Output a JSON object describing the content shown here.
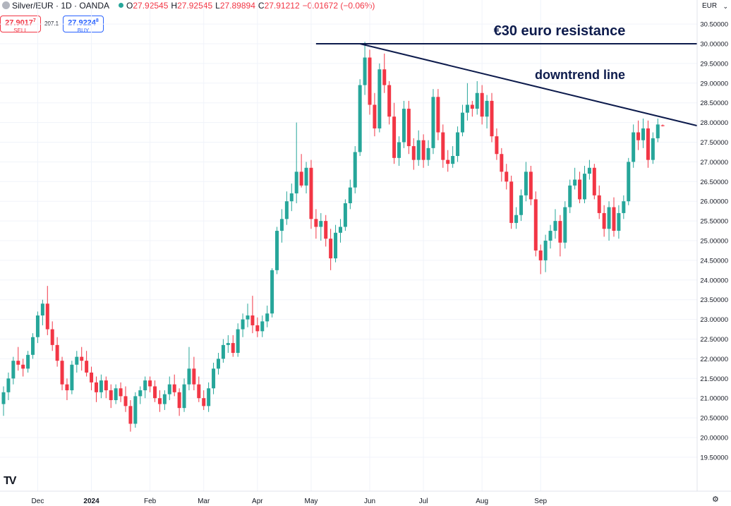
{
  "header": {
    "symbol": "Silver/EUR · 1D · OANDA",
    "o_label": "O",
    "o_value": "27.92545",
    "h_label": "H",
    "h_value": "27.92545",
    "l_label": "L",
    "l_value": "27.89894",
    "c_label": "C",
    "c_value": "27.91212",
    "change": "−0.01672 (−0.06%)"
  },
  "trade": {
    "sell_price": "27.9017",
    "sell_sup": "7",
    "sell_label": "SELL",
    "spread": "207.1",
    "buy_price": "27.9224",
    "buy_sup": "8",
    "buy_label": "BUY"
  },
  "currency": "EUR",
  "colors": {
    "up": "#26a69a",
    "down": "#f23645",
    "annotation": "#0d1b4c"
  },
  "chart_data": {
    "type": "candlestick",
    "title": "",
    "xlabel": "",
    "ylabel": "",
    "ylim": [
      19.4,
      30.5
    ],
    "y_ticks": [
      19.5,
      20.0,
      20.5,
      21.0,
      21.5,
      22.0,
      22.5,
      23.0,
      23.5,
      24.0,
      24.5,
      25.0,
      25.5,
      26.0,
      26.5,
      27.0,
      27.5,
      28.0,
      28.5,
      29.0,
      29.5,
      30.0,
      30.5
    ],
    "y_tick_labels": [
      "19.50000",
      "20.00000",
      "20.50000",
      "21.00000",
      "21.50000",
      "22.00000",
      "22.50000",
      "23.00000",
      "23.50000",
      "24.00000",
      "24.50000",
      "25.00000",
      "25.50000",
      "26.00000",
      "26.50000",
      "27.00000",
      "27.50000",
      "28.00000",
      "28.50000",
      "29.00000",
      "29.50000",
      "30.00000",
      "30.50000"
    ],
    "x_labels": [
      {
        "label": "Dec",
        "index": 7
      },
      {
        "label": "2024",
        "index": 18
      },
      {
        "label": "Feb",
        "index": 30
      },
      {
        "label": "Mar",
        "index": 41
      },
      {
        "label": "Apr",
        "index": 52
      },
      {
        "label": "May",
        "index": 63
      },
      {
        "label": "Jun",
        "index": 75
      },
      {
        "label": "Jul",
        "index": 86
      },
      {
        "label": "Aug",
        "index": 98
      },
      {
        "label": "Sep",
        "index": 110
      }
    ],
    "grid": true,
    "candles": [
      {
        "o": 20.85,
        "h": 21.3,
        "l": 20.55,
        "c": 21.15
      },
      {
        "o": 21.15,
        "h": 21.65,
        "l": 20.95,
        "c": 21.5
      },
      {
        "o": 21.5,
        "h": 22.05,
        "l": 21.35,
        "c": 21.95
      },
      {
        "o": 21.95,
        "h": 22.3,
        "l": 21.7,
        "c": 21.85
      },
      {
        "o": 21.85,
        "h": 22.0,
        "l": 21.55,
        "c": 21.75
      },
      {
        "o": 21.75,
        "h": 22.2,
        "l": 21.65,
        "c": 22.1
      },
      {
        "o": 22.1,
        "h": 22.65,
        "l": 22.0,
        "c": 22.55
      },
      {
        "o": 22.55,
        "h": 23.2,
        "l": 22.4,
        "c": 23.1
      },
      {
        "o": 23.1,
        "h": 23.5,
        "l": 22.85,
        "c": 23.4
      },
      {
        "o": 23.4,
        "h": 23.85,
        "l": 22.6,
        "c": 22.75
      },
      {
        "o": 22.75,
        "h": 22.95,
        "l": 22.2,
        "c": 22.35
      },
      {
        "o": 22.35,
        "h": 22.55,
        "l": 21.8,
        "c": 21.95
      },
      {
        "o": 21.95,
        "h": 22.05,
        "l": 21.2,
        "c": 21.35
      },
      {
        "o": 21.35,
        "h": 21.5,
        "l": 20.95,
        "c": 21.2
      },
      {
        "o": 21.2,
        "h": 21.95,
        "l": 21.1,
        "c": 21.85
      },
      {
        "o": 21.85,
        "h": 22.2,
        "l": 21.65,
        "c": 22.05
      },
      {
        "o": 22.05,
        "h": 22.3,
        "l": 21.7,
        "c": 21.95
      },
      {
        "o": 21.95,
        "h": 22.2,
        "l": 21.55,
        "c": 21.65
      },
      {
        "o": 21.65,
        "h": 21.8,
        "l": 21.2,
        "c": 21.4
      },
      {
        "o": 21.4,
        "h": 21.55,
        "l": 20.9,
        "c": 21.15
      },
      {
        "o": 21.15,
        "h": 21.6,
        "l": 21.0,
        "c": 21.45
      },
      {
        "o": 21.45,
        "h": 21.55,
        "l": 21.0,
        "c": 21.2
      },
      {
        "o": 21.2,
        "h": 21.35,
        "l": 20.75,
        "c": 20.95
      },
      {
        "o": 20.95,
        "h": 21.35,
        "l": 20.85,
        "c": 21.25
      },
      {
        "o": 21.25,
        "h": 21.4,
        "l": 20.9,
        "c": 21.05
      },
      {
        "o": 21.05,
        "h": 21.3,
        "l": 20.65,
        "c": 20.8
      },
      {
        "o": 20.8,
        "h": 20.95,
        "l": 20.15,
        "c": 20.35
      },
      {
        "o": 20.35,
        "h": 21.15,
        "l": 20.25,
        "c": 21.05
      },
      {
        "o": 21.05,
        "h": 21.3,
        "l": 20.85,
        "c": 21.2
      },
      {
        "o": 21.2,
        "h": 21.55,
        "l": 21.0,
        "c": 21.45
      },
      {
        "o": 21.45,
        "h": 21.55,
        "l": 21.15,
        "c": 21.3
      },
      {
        "o": 21.3,
        "h": 21.45,
        "l": 20.9,
        "c": 21.0
      },
      {
        "o": 21.0,
        "h": 21.2,
        "l": 20.65,
        "c": 20.85
      },
      {
        "o": 20.85,
        "h": 21.2,
        "l": 20.7,
        "c": 21.1
      },
      {
        "o": 21.1,
        "h": 21.55,
        "l": 20.95,
        "c": 21.35
      },
      {
        "o": 21.35,
        "h": 21.6,
        "l": 21.05,
        "c": 21.15
      },
      {
        "o": 21.15,
        "h": 21.25,
        "l": 20.55,
        "c": 20.75
      },
      {
        "o": 20.75,
        "h": 21.5,
        "l": 20.65,
        "c": 21.35
      },
      {
        "o": 21.35,
        "h": 22.3,
        "l": 21.2,
        "c": 21.75
      },
      {
        "o": 21.75,
        "h": 22.05,
        "l": 21.2,
        "c": 21.35
      },
      {
        "o": 21.35,
        "h": 21.55,
        "l": 20.9,
        "c": 21.0
      },
      {
        "o": 21.0,
        "h": 21.2,
        "l": 20.7,
        "c": 20.8
      },
      {
        "o": 20.8,
        "h": 21.4,
        "l": 20.65,
        "c": 21.25
      },
      {
        "o": 21.25,
        "h": 21.9,
        "l": 21.1,
        "c": 21.75
      },
      {
        "o": 21.75,
        "h": 22.15,
        "l": 21.6,
        "c": 22.0
      },
      {
        "o": 22.0,
        "h": 22.5,
        "l": 21.9,
        "c": 22.35
      },
      {
        "o": 22.35,
        "h": 22.6,
        "l": 22.15,
        "c": 22.4
      },
      {
        "o": 22.4,
        "h": 22.6,
        "l": 22.05,
        "c": 22.15
      },
      {
        "o": 22.15,
        "h": 22.9,
        "l": 22.05,
        "c": 22.75
      },
      {
        "o": 22.75,
        "h": 23.15,
        "l": 22.55,
        "c": 23.0
      },
      {
        "o": 23.0,
        "h": 23.4,
        "l": 22.8,
        "c": 23.1
      },
      {
        "o": 23.1,
        "h": 23.6,
        "l": 22.65,
        "c": 22.85
      },
      {
        "o": 22.85,
        "h": 23.05,
        "l": 22.55,
        "c": 22.7
      },
      {
        "o": 22.7,
        "h": 23.1,
        "l": 22.55,
        "c": 22.95
      },
      {
        "o": 22.95,
        "h": 23.35,
        "l": 22.8,
        "c": 23.15
      },
      {
        "o": 23.15,
        "h": 24.3,
        "l": 23.05,
        "c": 24.25
      },
      {
        "o": 24.25,
        "h": 25.35,
        "l": 24.15,
        "c": 25.25
      },
      {
        "o": 25.25,
        "h": 25.8,
        "l": 24.95,
        "c": 25.55
      },
      {
        "o": 25.55,
        "h": 26.25,
        "l": 25.4,
        "c": 26.0
      },
      {
        "o": 26.0,
        "h": 26.45,
        "l": 25.75,
        "c": 26.2
      },
      {
        "o": 26.2,
        "h": 28.0,
        "l": 25.95,
        "c": 26.75
      },
      {
        "o": 26.75,
        "h": 27.2,
        "l": 26.35,
        "c": 26.4
      },
      {
        "o": 26.4,
        "h": 27.0,
        "l": 26.2,
        "c": 26.85
      },
      {
        "o": 26.85,
        "h": 27.05,
        "l": 25.3,
        "c": 25.55
      },
      {
        "o": 25.55,
        "h": 25.8,
        "l": 25.05,
        "c": 25.35
      },
      {
        "o": 25.35,
        "h": 25.7,
        "l": 25.0,
        "c": 25.5
      },
      {
        "o": 25.5,
        "h": 25.65,
        "l": 24.85,
        "c": 25.05
      },
      {
        "o": 25.05,
        "h": 25.3,
        "l": 24.25,
        "c": 24.55
      },
      {
        "o": 24.55,
        "h": 25.4,
        "l": 24.45,
        "c": 25.2
      },
      {
        "o": 25.2,
        "h": 25.55,
        "l": 24.95,
        "c": 25.35
      },
      {
        "o": 25.35,
        "h": 26.05,
        "l": 25.25,
        "c": 25.95
      },
      {
        "o": 25.95,
        "h": 26.55,
        "l": 25.8,
        "c": 26.35
      },
      {
        "o": 26.35,
        "h": 27.4,
        "l": 26.2,
        "c": 27.25
      },
      {
        "o": 27.25,
        "h": 29.1,
        "l": 27.15,
        "c": 28.95
      },
      {
        "o": 28.95,
        "h": 30.05,
        "l": 28.7,
        "c": 29.65
      },
      {
        "o": 29.65,
        "h": 29.85,
        "l": 28.2,
        "c": 28.45
      },
      {
        "o": 28.45,
        "h": 28.75,
        "l": 27.65,
        "c": 27.85
      },
      {
        "o": 27.85,
        "h": 29.5,
        "l": 27.75,
        "c": 29.35
      },
      {
        "o": 29.35,
        "h": 29.75,
        "l": 28.75,
        "c": 28.95
      },
      {
        "o": 28.95,
        "h": 29.05,
        "l": 27.95,
        "c": 28.15
      },
      {
        "o": 28.15,
        "h": 28.5,
        "l": 26.95,
        "c": 27.1
      },
      {
        "o": 27.1,
        "h": 27.65,
        "l": 26.9,
        "c": 27.5
      },
      {
        "o": 27.5,
        "h": 28.55,
        "l": 27.35,
        "c": 28.35
      },
      {
        "o": 28.35,
        "h": 28.55,
        "l": 27.2,
        "c": 27.4
      },
      {
        "o": 27.4,
        "h": 27.6,
        "l": 26.8,
        "c": 27.05
      },
      {
        "o": 27.05,
        "h": 27.8,
        "l": 26.9,
        "c": 27.55
      },
      {
        "o": 27.55,
        "h": 27.7,
        "l": 26.85,
        "c": 27.05
      },
      {
        "o": 27.05,
        "h": 27.55,
        "l": 26.9,
        "c": 27.35
      },
      {
        "o": 27.35,
        "h": 28.85,
        "l": 27.2,
        "c": 28.65
      },
      {
        "o": 28.65,
        "h": 28.85,
        "l": 27.55,
        "c": 27.75
      },
      {
        "o": 27.75,
        "h": 27.95,
        "l": 26.85,
        "c": 27.05
      },
      {
        "o": 27.05,
        "h": 27.3,
        "l": 26.75,
        "c": 26.95
      },
      {
        "o": 26.95,
        "h": 27.4,
        "l": 26.85,
        "c": 27.15
      },
      {
        "o": 27.15,
        "h": 27.9,
        "l": 27.0,
        "c": 27.75
      },
      {
        "o": 27.75,
        "h": 28.45,
        "l": 27.65,
        "c": 28.25
      },
      {
        "o": 28.25,
        "h": 29.0,
        "l": 28.05,
        "c": 28.45
      },
      {
        "o": 28.45,
        "h": 28.55,
        "l": 28.15,
        "c": 28.35
      },
      {
        "o": 28.35,
        "h": 29.05,
        "l": 28.2,
        "c": 28.75
      },
      {
        "o": 28.75,
        "h": 28.95,
        "l": 27.95,
        "c": 28.15
      },
      {
        "o": 28.15,
        "h": 28.7,
        "l": 27.85,
        "c": 28.55
      },
      {
        "o": 28.55,
        "h": 28.75,
        "l": 27.5,
        "c": 27.65
      },
      {
        "o": 27.65,
        "h": 27.85,
        "l": 27.05,
        "c": 27.2
      },
      {
        "o": 27.2,
        "h": 27.35,
        "l": 26.5,
        "c": 26.75
      },
      {
        "o": 26.75,
        "h": 26.95,
        "l": 26.3,
        "c": 26.5
      },
      {
        "o": 26.5,
        "h": 26.65,
        "l": 25.3,
        "c": 25.45
      },
      {
        "o": 25.45,
        "h": 25.85,
        "l": 25.3,
        "c": 25.65
      },
      {
        "o": 25.65,
        "h": 26.3,
        "l": 25.5,
        "c": 26.15
      },
      {
        "o": 26.15,
        "h": 27.0,
        "l": 26.0,
        "c": 26.75
      },
      {
        "o": 26.75,
        "h": 26.9,
        "l": 25.9,
        "c": 26.05
      },
      {
        "o": 26.05,
        "h": 26.25,
        "l": 24.6,
        "c": 24.75
      },
      {
        "o": 24.75,
        "h": 24.9,
        "l": 24.15,
        "c": 24.5
      },
      {
        "o": 24.5,
        "h": 25.15,
        "l": 24.2,
        "c": 25.0
      },
      {
        "o": 25.0,
        "h": 25.4,
        "l": 24.8,
        "c": 25.25
      },
      {
        "o": 25.25,
        "h": 25.8,
        "l": 25.05,
        "c": 25.5
      },
      {
        "o": 25.5,
        "h": 25.65,
        "l": 24.6,
        "c": 24.95
      },
      {
        "o": 24.95,
        "h": 26.0,
        "l": 24.8,
        "c": 25.85
      },
      {
        "o": 25.85,
        "h": 26.55,
        "l": 25.7,
        "c": 26.4
      },
      {
        "o": 26.4,
        "h": 26.85,
        "l": 26.3,
        "c": 26.55
      },
      {
        "o": 26.55,
        "h": 26.75,
        "l": 25.95,
        "c": 26.05
      },
      {
        "o": 26.05,
        "h": 26.9,
        "l": 25.95,
        "c": 26.7
      },
      {
        "o": 26.7,
        "h": 27.05,
        "l": 26.55,
        "c": 26.85
      },
      {
        "o": 26.85,
        "h": 26.95,
        "l": 26.05,
        "c": 26.15
      },
      {
        "o": 26.15,
        "h": 26.4,
        "l": 25.55,
        "c": 25.7
      },
      {
        "o": 25.7,
        "h": 25.9,
        "l": 25.1,
        "c": 25.3
      },
      {
        "o": 25.3,
        "h": 26.0,
        "l": 25.0,
        "c": 25.85
      },
      {
        "o": 25.85,
        "h": 26.1,
        "l": 25.1,
        "c": 25.25
      },
      {
        "o": 25.25,
        "h": 25.9,
        "l": 25.05,
        "c": 25.7
      },
      {
        "o": 25.7,
        "h": 26.15,
        "l": 25.55,
        "c": 26.0
      },
      {
        "o": 26.0,
        "h": 27.1,
        "l": 25.9,
        "c": 27.0
      },
      {
        "o": 27.0,
        "h": 27.95,
        "l": 26.85,
        "c": 27.75
      },
      {
        "o": 27.75,
        "h": 28.05,
        "l": 27.3,
        "c": 27.55
      },
      {
        "o": 27.55,
        "h": 28.1,
        "l": 27.35,
        "c": 27.85
      },
      {
        "o": 27.85,
        "h": 28.05,
        "l": 26.85,
        "c": 27.05
      },
      {
        "o": 27.05,
        "h": 27.75,
        "l": 26.95,
        "c": 27.6
      },
      {
        "o": 27.6,
        "h": 28.1,
        "l": 27.5,
        "c": 27.95
      },
      {
        "o": 27.93,
        "h": 27.95,
        "l": 27.9,
        "c": 27.91
      }
    ],
    "annotations": [
      {
        "type": "horizontal_line",
        "value": 30.0,
        "from_index": 64,
        "label": "€30 euro resistance"
      },
      {
        "type": "trend_line",
        "from": {
          "index": 73,
          "value": 30.0
        },
        "to": {
          "index": 142,
          "value": 27.92
        },
        "label": "downtrend line"
      }
    ]
  }
}
